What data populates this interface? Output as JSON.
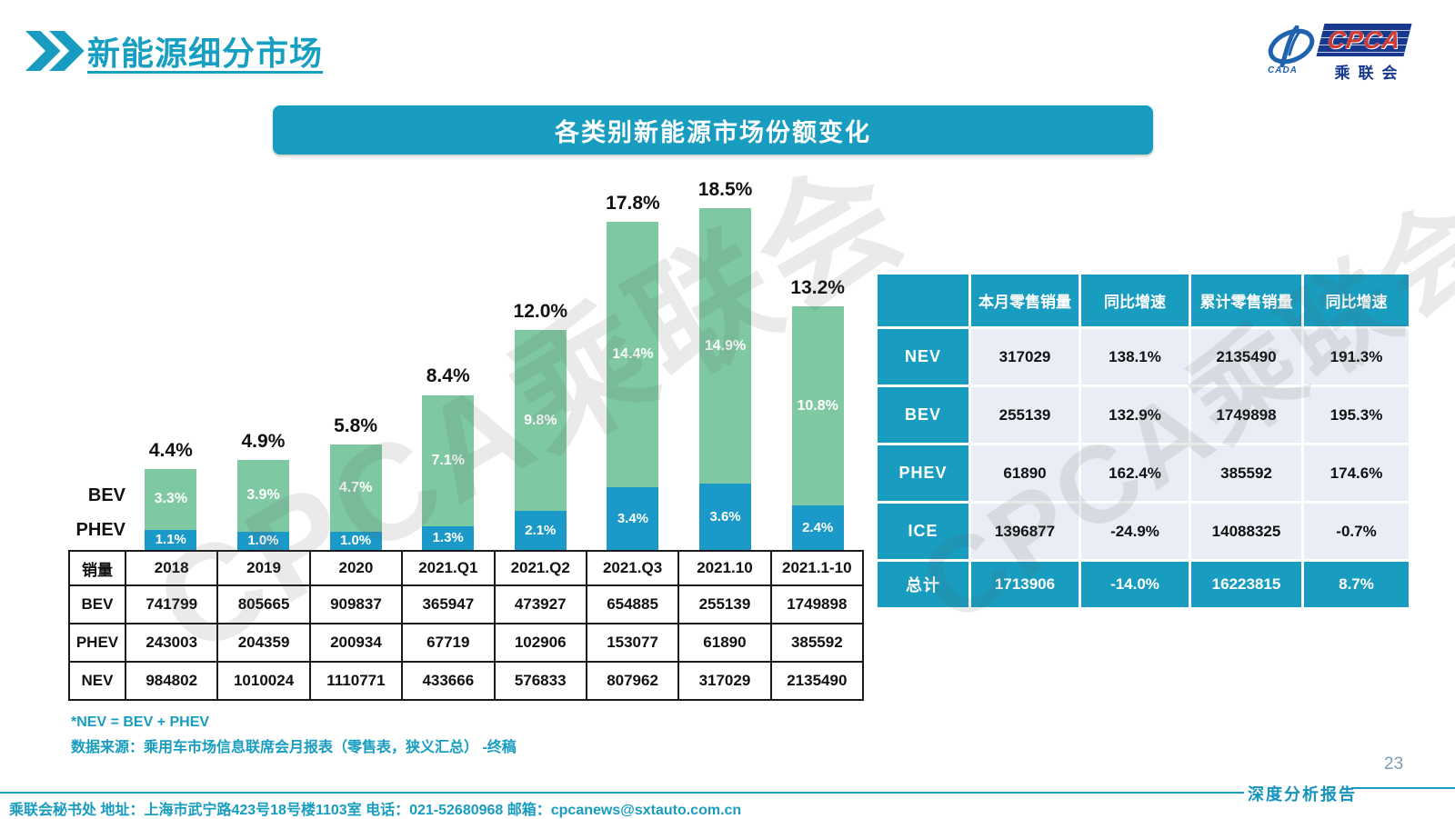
{
  "header": {
    "title": "新能源细分市场"
  },
  "logo": {
    "cpca": "CPCA",
    "cada": "CADA",
    "cn": "乘联会"
  },
  "chart_data": {
    "type": "stacked-bar",
    "title": "各类别新能源市场份额变化",
    "categories": [
      "2018",
      "2019",
      "2020",
      "2021.Q1",
      "2021.Q2",
      "2021.Q3",
      "2021.10",
      "2021.1-10"
    ],
    "series": [
      {
        "name": "BEV",
        "color": "#7ec8a2",
        "values": [
          3.3,
          3.9,
          4.7,
          7.1,
          9.8,
          14.4,
          14.9,
          10.8
        ]
      },
      {
        "name": "PHEV",
        "color": "#1b99c8",
        "values": [
          1.1,
          1.0,
          1.0,
          1.3,
          2.1,
          3.4,
          3.6,
          2.4
        ]
      }
    ],
    "totals": [
      4.4,
      4.9,
      5.8,
      8.4,
      12.0,
      17.8,
      18.5,
      13.2
    ],
    "unit": "%",
    "ylim": [
      0,
      20
    ],
    "value_labels": "inside-white",
    "legend_position": "left-axis",
    "axis_labels": {
      "bev": "BEV",
      "phev": "PHEV"
    }
  },
  "sales_table": {
    "corner_label": "销量",
    "columns": [
      "2018",
      "2019",
      "2020",
      "2021.Q1",
      "2021.Q2",
      "2021.Q3",
      "2021.10",
      "2021.1-10"
    ],
    "rows": [
      {
        "label": "BEV",
        "values": [
          "741799",
          "805665",
          "909837",
          "365947",
          "473927",
          "654885",
          "255139",
          "1749898"
        ]
      },
      {
        "label": "PHEV",
        "values": [
          "243003",
          "204359",
          "200934",
          "67719",
          "102906",
          "153077",
          "61890",
          "385592"
        ]
      },
      {
        "label": "NEV",
        "values": [
          "984802",
          "1010024",
          "1110771",
          "433666",
          "576833",
          "807962",
          "317029",
          "2135490"
        ]
      }
    ]
  },
  "summary_table": {
    "columns": [
      "",
      "本月零售销量",
      "同比增速",
      "累计零售销量",
      "同比增速"
    ],
    "rows": [
      {
        "label": "NEV",
        "values": [
          "317029",
          "138.1%",
          "2135490",
          "191.3%"
        ],
        "total": false
      },
      {
        "label": "BEV",
        "values": [
          "255139",
          "132.9%",
          "1749898",
          "195.3%"
        ],
        "total": false
      },
      {
        "label": "PHEV",
        "values": [
          "61890",
          "162.4%",
          "385592",
          "174.6%"
        ],
        "total": false
      },
      {
        "label": "ICE",
        "values": [
          "1396877",
          "-24.9%",
          "14088325",
          "-0.7%"
        ],
        "total": false
      },
      {
        "label": "总计",
        "values": [
          "1713906",
          "-14.0%",
          "16223815",
          "8.7%"
        ],
        "total": true
      }
    ]
  },
  "notes": {
    "line1": "*NEV = BEV + PHEV",
    "line2": "数据来源：乘用车市场信息联席会月报表（零售表，狭义汇总） -终稿"
  },
  "footer": {
    "text": "乘联会秘书处   地址：上海市武宁路423号18号楼1103室  电话：021-52680968   邮箱：cpcanews@sxtauto.com.cn",
    "report": "深度分析报告",
    "page": "23"
  },
  "watermark": {
    "text": "CPCA乘联会"
  },
  "colors": {
    "teal": "#189dc0",
    "bar_green": "#7ec8a2",
    "bar_blue": "#1b99c8",
    "row_light": "#e9eef6",
    "navy": "#16388e",
    "red": "#d23a31"
  }
}
